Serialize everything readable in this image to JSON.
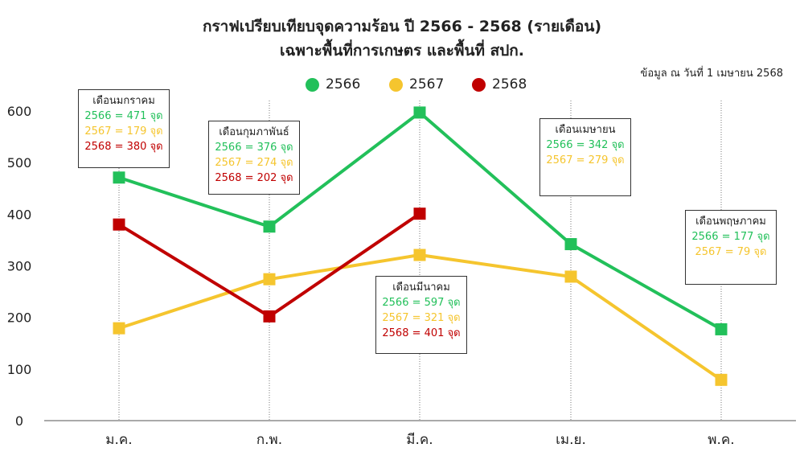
{
  "title_line1": "กราฟเปรียบเทียบจุดความร้อน ปี 2566 - 2568 (รายเดือน)",
  "title_line2": "เฉพาะพื้นที่การเกษตร และพื้นที่ สปก.",
  "as_of": "ข้อมูล ณ วันที่ 1 เมษายน 2568",
  "colors": {
    "s2566": "#22c05a",
    "s2567": "#f5c52e",
    "s2568": "#c00000"
  },
  "annotations": [
    {
      "month": "เดือนมกราคม",
      "lines": [
        {
          "series": "2566",
          "text": "2566 = 471 จุด"
        },
        {
          "series": "2567",
          "text": "2567 = 179 จุด"
        },
        {
          "series": "2568",
          "text": "2568 = 380 จุด"
        }
      ]
    },
    {
      "month": "เดือนกุมภาพันธ์",
      "lines": [
        {
          "series": "2566",
          "text": "2566 = 376 จุด"
        },
        {
          "series": "2567",
          "text": "2567 = 274 จุด"
        },
        {
          "series": "2568",
          "text": "2568 = 202 จุด"
        }
      ]
    },
    {
      "month": "เดือนมีนาคม",
      "lines": [
        {
          "series": "2566",
          "text": "2566 = 597 จุด"
        },
        {
          "series": "2567",
          "text": "2567 = 321 จุด"
        },
        {
          "series": "2568",
          "text": "2568 = 401 จุด"
        }
      ]
    },
    {
      "month": "เดือนเมษายน",
      "lines": [
        {
          "series": "2566",
          "text": "2566 = 342 จุด"
        },
        {
          "series": "2567",
          "text": "2567 = 279 จุด"
        }
      ]
    },
    {
      "month": "เดือนพฤษภาคม",
      "lines": [
        {
          "series": "2566",
          "text": "2566 = 177 จุด"
        },
        {
          "series": "2567",
          "text": "2567 = 79 จุด"
        }
      ]
    }
  ],
  "chart_data": {
    "type": "line",
    "title": "กราฟเปรียบเทียบจุดความร้อน ปี 2566 - 2568 (รายเดือน)",
    "subtitle": "เฉพาะพื้นที่การเกษตร และพื้นที่ สปก.",
    "categories": [
      "ม.ค.",
      "ก.พ.",
      "มี.ค.",
      "เม.ย.",
      "พ.ค."
    ],
    "series": [
      {
        "name": "2566",
        "values": [
          471,
          376,
          597,
          342,
          177
        ]
      },
      {
        "name": "2567",
        "values": [
          179,
          274,
          321,
          279,
          79
        ]
      },
      {
        "name": "2568",
        "values": [
          380,
          202,
          401,
          null,
          null
        ]
      }
    ],
    "ylim": [
      0,
      600
    ],
    "yticks": [
      0,
      100,
      200,
      300,
      400,
      500,
      600
    ],
    "grid": false,
    "legend_position": "top-center"
  }
}
